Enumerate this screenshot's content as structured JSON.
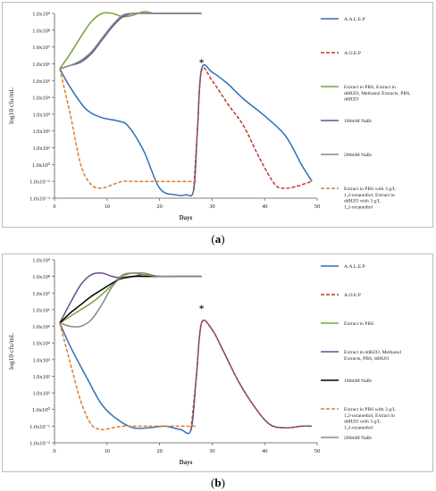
{
  "panel_a": {
    "caption_open": "(",
    "caption_letter": "a",
    "caption_close": ")"
  },
  "panel_b": {
    "caption_open": "(",
    "caption_letter": "b",
    "caption_close": ")"
  },
  "chart_data": [
    {
      "type": "line",
      "panel": "a",
      "xlabel": "Days",
      "ylabel": "log10 cfu/mL",
      "xlim": [
        0,
        50
      ],
      "ylim_log10": [
        -2,
        9
      ],
      "y_scale": "log",
      "x_ticks": [
        "0",
        "10",
        "20",
        "30",
        "40",
        "50"
      ],
      "y_ticks": [
        "1.0x10⁻²",
        "1.0x10⁻¹",
        "1.0x10⁰",
        "1.0x10¹",
        "1.0x10²",
        "1.0x10³",
        "1.0x10⁴",
        "1.0x10⁵",
        "1.0x10⁶",
        "1.0x10⁷",
        "1.0x10⁸",
        "1.0x10⁹"
      ],
      "annotation": "*",
      "annotation_x": 28,
      "annotation_log10y": 5.9,
      "legend_placement": "right",
      "series": [
        {
          "name": "A.A.L.E.P",
          "color": "#2e6fb7",
          "dash": "solid",
          "x": [
            1,
            3,
            6,
            9,
            12,
            14,
            17,
            20,
            23,
            25,
            26.5,
            27.2,
            28,
            30,
            33,
            36,
            40,
            44,
            47,
            49
          ],
          "log10y": [
            5.7,
            4.6,
            3.3,
            2.8,
            2.6,
            2.3,
            0.8,
            -1.4,
            -1.8,
            -1.8,
            -1.5,
            2.0,
            5.7,
            5.5,
            4.8,
            3.9,
            2.9,
            1.7,
            0.0,
            -1.0
          ]
        },
        {
          "name": "A.O.E.P",
          "color": "#c0392b",
          "dash": "dash",
          "x": [
            26.5,
            27.2,
            28,
            30,
            33,
            36,
            39,
            42,
            44,
            46,
            48,
            49
          ],
          "log10y": [
            -1.5,
            2.0,
            5.6,
            5.0,
            3.6,
            2.3,
            0.4,
            -1.2,
            -1.4,
            -1.3,
            -1.1,
            -1.0
          ]
        },
        {
          "name": "Extract in PBS, Extract in ddH2O, Methanol Extracts, PBS, ddH2O",
          "color": "#77a33f",
          "dash": "solid",
          "x": [
            1,
            3,
            5,
            7,
            9,
            11,
            13,
            15,
            17,
            19,
            21,
            23,
            25,
            28
          ],
          "log10y": [
            5.7,
            6.6,
            7.6,
            8.5,
            9.0,
            9.0,
            8.8,
            8.9,
            9.1,
            9.0,
            9.0,
            9.0,
            9.0,
            9.0
          ]
        },
        {
          "name": "100mM NaBr",
          "color": "#6a4e8c",
          "dash": "solid",
          "x": [
            1,
            3,
            5,
            7,
            9,
            11,
            13,
            15,
            17,
            20,
            24,
            28
          ],
          "log10y": [
            5.7,
            5.9,
            6.1,
            6.6,
            7.4,
            8.2,
            8.8,
            9.0,
            9.0,
            9.0,
            9.0,
            9.0
          ]
        },
        {
          "name": "200mM NaBr",
          "color": "#8a8a8a",
          "dash": "solid",
          "x": [
            1,
            3,
            5,
            7,
            9,
            11,
            13,
            15,
            17,
            20,
            24,
            28
          ],
          "log10y": [
            5.7,
            5.9,
            6.2,
            6.7,
            7.5,
            8.3,
            8.9,
            9.0,
            9.0,
            9.0,
            9.0,
            9.0
          ]
        },
        {
          "name": "Extract in PBS with 3 g/L 1,2-octanediol, Extract in ddH2O with 3 g/L 1,2-octanediol",
          "color": "#e07b2a",
          "dash": "dash",
          "x": [
            1,
            3,
            5,
            7,
            9,
            11,
            13,
            15,
            18,
            21,
            24,
            27
          ],
          "log10y": [
            5.7,
            3.0,
            0.0,
            -1.2,
            -1.4,
            -1.2,
            -1.0,
            -1.0,
            -1.0,
            -1.0,
            -1.0,
            -1.0
          ]
        }
      ]
    },
    {
      "type": "line",
      "panel": "b",
      "xlabel": "Days",
      "ylabel": "log10 cfu/mL",
      "xlim": [
        0,
        50
      ],
      "ylim_log10": [
        -2,
        9
      ],
      "y_scale": "log",
      "x_ticks": [
        "0",
        "10",
        "20",
        "30",
        "40",
        "50"
      ],
      "y_ticks": [
        "1.0x10⁻²",
        "1.0x10⁻¹",
        "1.0x10⁰",
        "1.0x10¹",
        "1.0x10²",
        "1.0x10³",
        "1.0x10⁴",
        "1.0x10⁵",
        "1.0x10⁶",
        "1.0x10⁷",
        "1.0x10⁸",
        "1.0x10⁹"
      ],
      "annotation": "*",
      "annotation_x": 28,
      "annotation_log10y": 5.9,
      "legend_placement": "right",
      "series": [
        {
          "name": "A.A.L.E.P",
          "color": "#2e6fb7",
          "dash": "solid",
          "x": [
            1,
            3,
            6,
            9,
            12,
            15,
            18,
            21,
            24,
            26,
            27,
            28,
            30,
            32,
            35,
            38,
            41,
            44,
            47,
            49
          ],
          "log10y": [
            5.2,
            3.8,
            2.0,
            0.3,
            -0.6,
            -1.1,
            -1.1,
            -1.0,
            -1.2,
            -1.2,
            2.0,
            5.2,
            4.8,
            3.6,
            1.7,
            0.2,
            -0.9,
            -1.1,
            -1.0,
            -1.0
          ]
        },
        {
          "name": "A.O.E.P",
          "color": "#c0392b",
          "dash": "dash",
          "x": [
            26,
            27,
            28,
            30,
            32,
            35,
            38,
            41,
            44,
            47,
            49
          ],
          "log10y": [
            -1.2,
            2.0,
            5.2,
            4.8,
            3.6,
            1.7,
            0.2,
            -0.9,
            -1.1,
            -1.0,
            -1.0
          ]
        },
        {
          "name": "Extract in PBS",
          "color": "#77a33f",
          "dash": "solid",
          "x": [
            1,
            3,
            5,
            7,
            9,
            11,
            13,
            15,
            17,
            20,
            24,
            28
          ],
          "log10y": [
            5.2,
            5.6,
            6.0,
            6.4,
            6.9,
            7.5,
            8.1,
            8.2,
            8.2,
            8.0,
            8.0,
            8.0
          ]
        },
        {
          "name": "Extract in ddH2O, Methanol Extracts, PBS, ddH2O",
          "color": "#6a4e8c",
          "dash": "solid",
          "x": [
            1,
            3,
            5,
            7,
            9,
            11,
            13,
            15,
            17,
            20,
            24,
            28
          ],
          "log10y": [
            5.2,
            6.4,
            7.5,
            8.1,
            8.2,
            8.0,
            7.9,
            8.0,
            8.1,
            8.0,
            8.0,
            8.0
          ]
        },
        {
          "name": "100mM NaBr",
          "color": "#000000",
          "dash": "solid",
          "x": [
            1,
            3,
            5,
            7,
            9,
            11,
            13,
            15,
            17,
            20,
            24,
            28
          ],
          "log10y": [
            5.2,
            5.8,
            6.3,
            6.8,
            7.2,
            7.6,
            7.9,
            8.0,
            8.0,
            8.0,
            8.0,
            8.0
          ]
        },
        {
          "name": "Extract in PBS with 3 g/L 1,2-octanediol, Extract in ddH2O with 3 g/L 1,2-octanediol",
          "color": "#e07b2a",
          "dash": "dash",
          "x": [
            1,
            3,
            5,
            7,
            9,
            11,
            13,
            15,
            18,
            21,
            24,
            27
          ],
          "log10y": [
            5.2,
            2.8,
            0.5,
            -0.9,
            -1.2,
            -1.1,
            -1.0,
            -1.0,
            -1.0,
            -1.0,
            -1.0,
            -1.0
          ]
        },
        {
          "name": "200mM NaBr",
          "color": "#8a8a8a",
          "dash": "solid",
          "x": [
            1,
            3,
            5,
            7,
            9,
            11,
            13,
            15,
            17,
            20,
            24,
            28
          ],
          "log10y": [
            5.2,
            5.0,
            5.0,
            5.4,
            6.3,
            7.4,
            8.0,
            8.2,
            8.1,
            8.0,
            8.0,
            8.0
          ]
        }
      ]
    }
  ]
}
